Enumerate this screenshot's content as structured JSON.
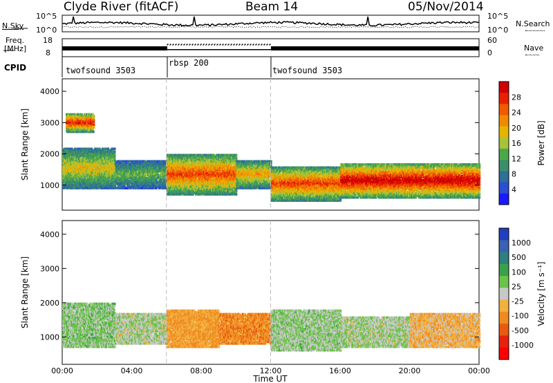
{
  "header": {
    "station": "Clyde River (fitACF)",
    "beam": "Beam 14",
    "date": "05/Nov/2014"
  },
  "noise_panel": {
    "left_label": "N.Sky",
    "left_ticks": [
      "10^5",
      "10^0"
    ],
    "right_ticks": [
      "10^5",
      "10^0"
    ],
    "right_label": "N.Search"
  },
  "freq_panel": {
    "label_line1": "Freq.",
    "label_line2": "[MHz]",
    "left_ticks": [
      "18",
      "8"
    ],
    "right_ticks": [
      "60",
      "0"
    ],
    "right_label": "Nave"
  },
  "cpid": {
    "label": "CPID",
    "segments": [
      "twofsound 3503",
      "rbsp 200",
      "twofsound 3503"
    ]
  },
  "colors": {
    "power": [
      "#1a1aff",
      "#2a4fd0",
      "#2f6f9a",
      "#3a8f6a",
      "#4aa84a",
      "#a8c23a",
      "#e6b400",
      "#f08a00",
      "#f05a00",
      "#e82000",
      "#d00000"
    ],
    "velocity": [
      "#1f3fbf",
      "#3a62b0",
      "#2f7f7f",
      "#3aa04a",
      "#6cc24a",
      "#c8c8c8",
      "#f2b040",
      "#f08a20",
      "#e85a10",
      "#e82010",
      "#ff0000"
    ]
  },
  "chart_data": [
    {
      "type": "heatmap",
      "title": "",
      "xlabel": "Time UT",
      "ylabel": "Slant Range [km]",
      "x_ticks": [
        "00:00",
        "04:00",
        "08:00",
        "12:00",
        "16:00",
        "20:00",
        "00:00"
      ],
      "y_ticks": [
        "1000",
        "2000",
        "3000",
        "4000"
      ],
      "xlim": [
        0,
        24
      ],
      "ylim": [
        200,
        4400
      ],
      "colorbar": {
        "label": "Power [dB]",
        "ticks": [
          "4",
          "8",
          "12",
          "16",
          "20",
          "24",
          "28"
        ],
        "range": [
          0,
          30
        ]
      },
      "bands": [
        {
          "t": [
            0,
            3
          ],
          "r": [
            900,
            2200
          ],
          "value": 14
        },
        {
          "t": [
            0.2,
            1.8
          ],
          "r": [
            2700,
            3300
          ],
          "value": 22
        },
        {
          "t": [
            3,
            6
          ],
          "r": [
            900,
            1800
          ],
          "value": 10
        },
        {
          "t": [
            6,
            10
          ],
          "r": [
            700,
            2000
          ],
          "value": 20
        },
        {
          "t": [
            10,
            12
          ],
          "r": [
            900,
            1800
          ],
          "value": 16
        },
        {
          "t": [
            12,
            16
          ],
          "r": [
            500,
            1600
          ],
          "value": 20
        },
        {
          "t": [
            16,
            24
          ],
          "r": [
            600,
            1700
          ],
          "value": 24
        }
      ]
    },
    {
      "type": "heatmap",
      "title": "",
      "xlabel": "Time UT",
      "ylabel": "Slant Range [km]",
      "x_ticks": [
        "00:00",
        "04:00",
        "08:00",
        "12:00",
        "16:00",
        "20:00",
        "00:00"
      ],
      "y_ticks": [
        "1000",
        "2000",
        "3000",
        "4000"
      ],
      "xlim": [
        0,
        24
      ],
      "ylim": [
        200,
        4400
      ],
      "colorbar": {
        "label": "Velocity [m s⁻¹]",
        "ticks": [
          "1000",
          "500",
          "100",
          "25",
          "-25",
          "-100",
          "-500",
          "-1000"
        ],
        "range": [
          -1000,
          1000
        ]
      },
      "bands": [
        {
          "t": [
            0,
            3
          ],
          "r": [
            700,
            2000
          ],
          "value": 150
        },
        {
          "t": [
            3,
            6
          ],
          "r": [
            800,
            1700
          ],
          "value": 60
        },
        {
          "t": [
            6,
            9
          ],
          "r": [
            700,
            1800
          ],
          "value": -300
        },
        {
          "t": [
            9,
            12
          ],
          "r": [
            800,
            1700
          ],
          "value": -400
        },
        {
          "t": [
            12,
            16
          ],
          "r": [
            600,
            1800
          ],
          "value": 120
        },
        {
          "t": [
            16,
            20
          ],
          "r": [
            700,
            1600
          ],
          "value": 80
        },
        {
          "t": [
            20,
            24
          ],
          "r": [
            700,
            1700
          ],
          "value": -200
        }
      ]
    }
  ]
}
